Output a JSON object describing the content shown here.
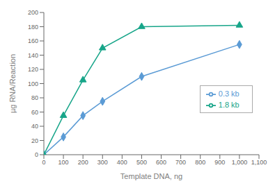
{
  "chart_data": {
    "type": "line",
    "x": [
      0,
      100,
      200,
      300,
      500,
      1000
    ],
    "series": [
      {
        "name": "0.3 kb",
        "color": "#5b9bd5",
        "marker": "diamond",
        "values": [
          0,
          25,
          55,
          75,
          110,
          155
        ]
      },
      {
        "name": "1.8 kb",
        "color": "#17a589",
        "marker": "triangle",
        "values": [
          0,
          55,
          105,
          150,
          180,
          182
        ]
      }
    ],
    "xlabel": "Template DNA, ng",
    "ylabel": "µg RNA/Reaction",
    "xlim": [
      0,
      1100
    ],
    "ylim": [
      0,
      200
    ],
    "xticks": [
      0,
      100,
      200,
      300,
      400,
      500,
      600,
      700,
      800,
      900,
      {
        "value": 1000,
        "label": "1,000"
      },
      {
        "value": 1100,
        "label": "1,100"
      }
    ],
    "yticks": [
      0,
      20,
      40,
      60,
      80,
      100,
      120,
      140,
      160,
      180,
      200
    ],
    "grid": false,
    "legend": "right"
  }
}
